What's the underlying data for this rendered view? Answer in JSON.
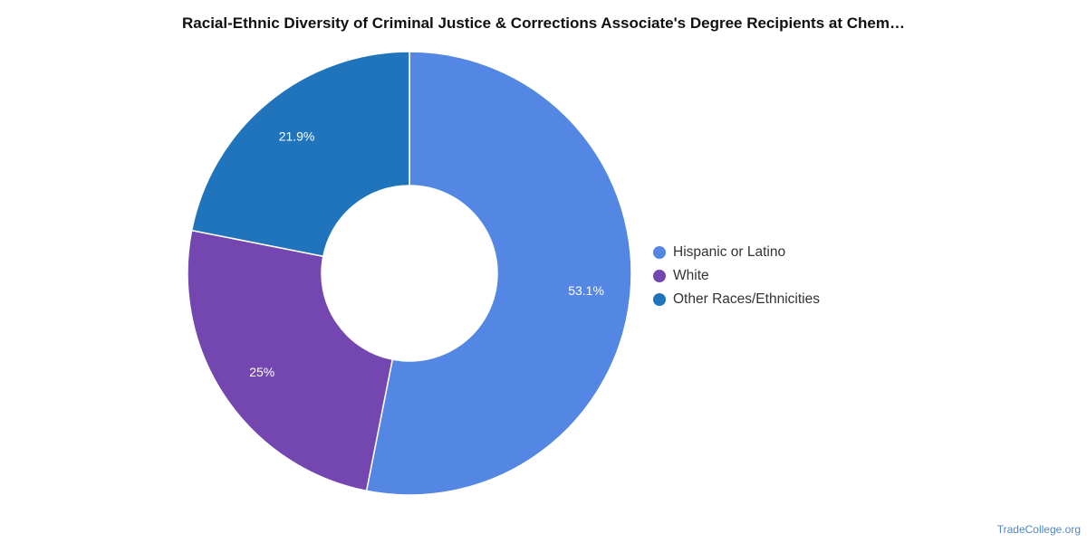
{
  "chart_data": {
    "type": "pie",
    "title": "Racial-Ethnic Diversity of Criminal Justice & Corrections Associate's Degree Recipients at Chem…",
    "categories": [
      "Hispanic or Latino",
      "White",
      "Other Races/Ethnicities"
    ],
    "values": [
      53.1,
      25,
      21.9
    ],
    "data_labels": [
      "53.1%",
      "25%",
      "21.9%"
    ],
    "colors": [
      "#5486e3",
      "#7447b0",
      "#1f74bc"
    ],
    "donut": true,
    "legend_placement": "right"
  },
  "footer": {
    "credit": "TradeCollege.org"
  }
}
